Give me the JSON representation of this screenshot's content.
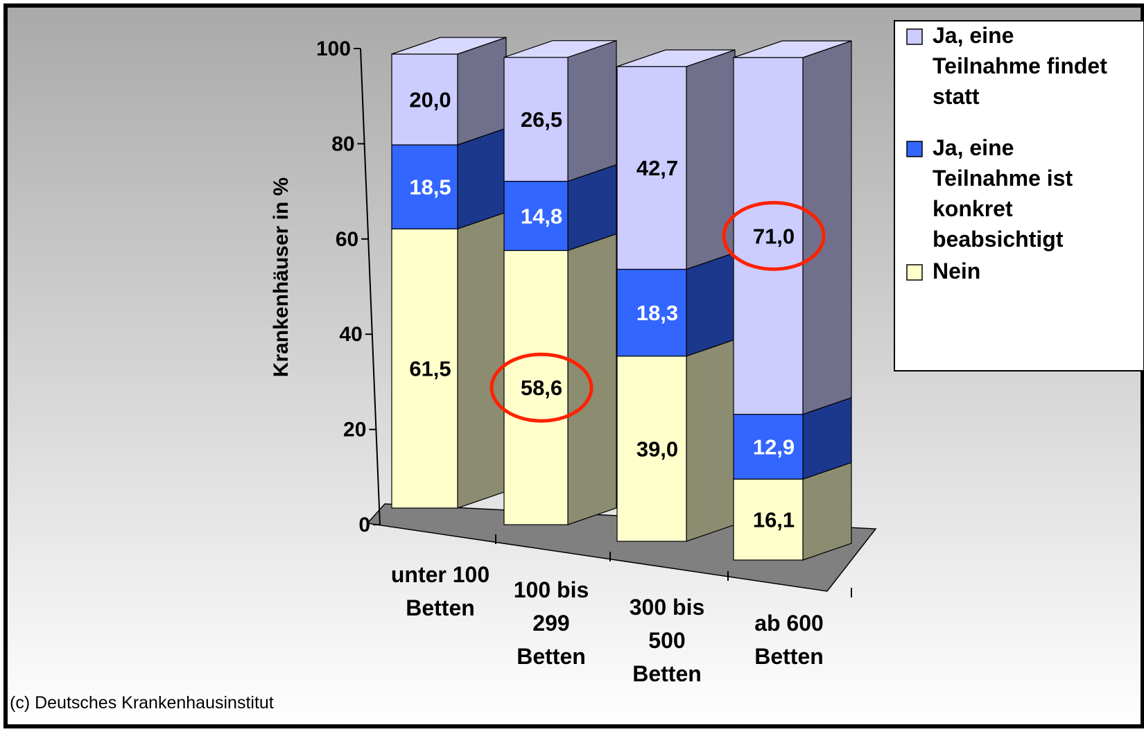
{
  "chart_data": {
    "type": "bar",
    "stacked": true,
    "three_d": true,
    "ylabel": "Krankenhäuser in %",
    "ylim": [
      0,
      100
    ],
    "yticks": [
      "0",
      "20",
      "40",
      "60",
      "80",
      "100"
    ],
    "categories": [
      [
        "unter 100",
        "Betten"
      ],
      [
        "100 bis",
        "299",
        "Betten"
      ],
      [
        "300 bis",
        "500",
        "Betten"
      ],
      [
        "ab 600",
        "Betten"
      ]
    ],
    "series": [
      {
        "name": "Nein",
        "color": "#FFFFCC",
        "values": [
          61.5,
          58.6,
          39.0,
          16.1
        ],
        "labels": [
          "61,5",
          "58,6",
          "39,0",
          "16,1"
        ]
      },
      {
        "name": "Ja, eine Teilnahme ist konkret beabsichtigt",
        "color": "#3366FF",
        "values": [
          18.5,
          14.8,
          18.3,
          12.9
        ],
        "labels": [
          "18,5",
          "14,8",
          "18,3",
          "12,9"
        ]
      },
      {
        "name": "Ja, eine Teilnahme findet statt",
        "color": "#CCCCFF",
        "values": [
          20.0,
          26.5,
          42.7,
          71.0
        ],
        "labels": [
          "20,0",
          "26,5",
          "42,7",
          "71,0"
        ]
      }
    ],
    "legend_position": "top-right",
    "legend_items": [
      {
        "lines": [
          "Ja, eine",
          "Teilnahme findet",
          "statt"
        ],
        "color": "#CCCCFF"
      },
      {
        "lines": [
          "Ja, eine",
          "Teilnahme ist",
          "konkret",
          "beabsichtigt"
        ],
        "color": "#3366FF"
      },
      {
        "lines": [
          "Nein"
        ],
        "color": "#FFFFCC"
      }
    ],
    "highlighted_labels": [
      "58,6",
      "71,0"
    ],
    "highlight_color": "#FF2200",
    "grid": false
  },
  "credit": "(c) Deutsches Krankenhausinstitut",
  "colors": {
    "background_top": "#A9A9A9",
    "background_bottom": "#FFFFFF",
    "floor": "#808080",
    "side_darkening": 0.55,
    "top_lightening": 0.25
  }
}
